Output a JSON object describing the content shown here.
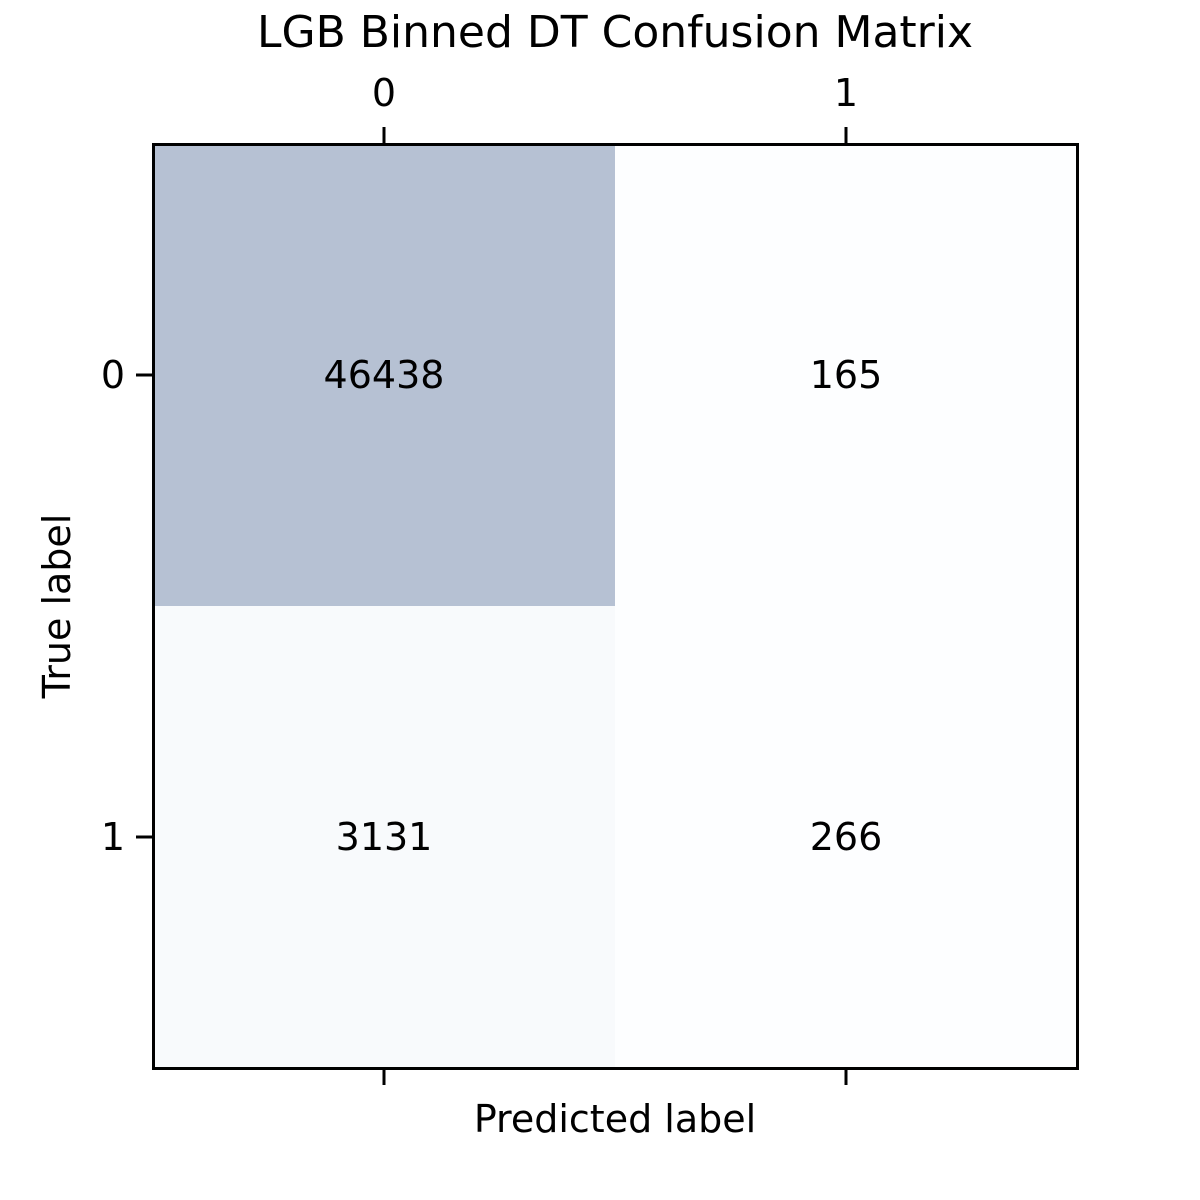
{
  "chart_data": {
    "type": "heatmap",
    "title": "LGB Binned DT Confusion Matrix",
    "xlabel": "Predicted label",
    "ylabel": "True label",
    "x_categories": [
      "0",
      "1"
    ],
    "y_categories": [
      "0",
      "1"
    ],
    "x_tick_position": "top",
    "values": [
      [
        46438,
        165
      ],
      [
        3131,
        266
      ]
    ],
    "colormap": {
      "low": "#fdfeff",
      "high": "#b6c1d3"
    },
    "grid": false,
    "colorbar": false
  }
}
